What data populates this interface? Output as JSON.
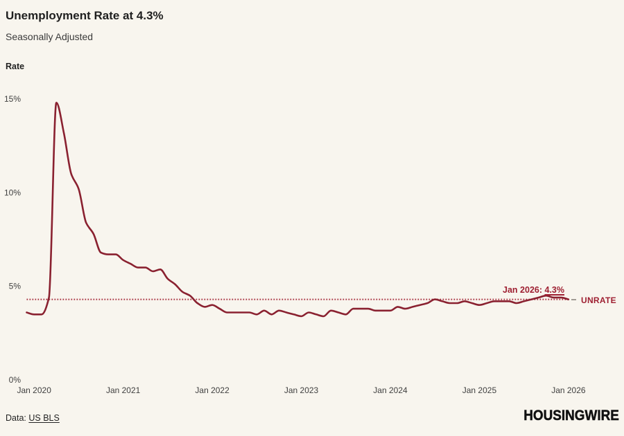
{
  "header": {
    "title": "Unemployment Rate at 4.3%",
    "subtitle": "Seasonally Adjusted"
  },
  "chart_data": {
    "type": "line",
    "title": "Unemployment Rate at 4.3%",
    "subtitle": "Seasonally Adjusted",
    "ylabel": "Rate",
    "xlabel": "",
    "frequency": "monthly",
    "x_start": "Dec 2019",
    "x_end": "Jan 2026",
    "x_ticks": [
      "Jan 2020",
      "Jan 2021",
      "Jan 2022",
      "Jan 2023",
      "Jan 2024",
      "Jan 2025",
      "Jan 2026"
    ],
    "y_ticks": [
      "0%",
      "5%",
      "10%",
      "15%"
    ],
    "ylim": [
      0,
      15.6
    ],
    "grid": false,
    "series": [
      {
        "name": "UNRATE",
        "color": "#8a2130",
        "values": [
          3.6,
          3.5,
          3.5,
          4.4,
          14.8,
          13.2,
          11.0,
          10.2,
          8.4,
          7.8,
          6.8,
          6.7,
          6.7,
          6.4,
          6.2,
          6.0,
          6.0,
          5.8,
          5.9,
          5.4,
          5.1,
          4.7,
          4.5,
          4.1,
          3.9,
          4.0,
          3.8,
          3.6,
          3.6,
          3.6,
          3.6,
          3.5,
          3.7,
          3.5,
          3.7,
          3.6,
          3.5,
          3.4,
          3.6,
          3.5,
          3.4,
          3.7,
          3.6,
          3.5,
          3.8,
          3.8,
          3.8,
          3.7,
          3.7,
          3.7,
          3.9,
          3.8,
          3.9,
          4.0,
          4.1,
          4.3,
          4.2,
          4.1,
          4.1,
          4.2,
          4.1,
          4.0,
          4.1,
          4.2,
          4.2,
          4.2,
          4.1,
          4.2,
          4.3,
          4.4,
          4.5,
          4.4,
          4.4,
          4.3
        ]
      }
    ],
    "reference_line": {
      "value": 4.3,
      "color": "#a52a3a",
      "style": "dotted"
    },
    "annotation": {
      "text_prefix": "Jan 2026: ",
      "text_value": "4.3%",
      "color": "#9e1f31"
    },
    "tick_color": "#3f3f3f"
  },
  "footer": {
    "data_label": "Data:",
    "source": "US BLS",
    "brand": "HOUSINGWIRE"
  }
}
